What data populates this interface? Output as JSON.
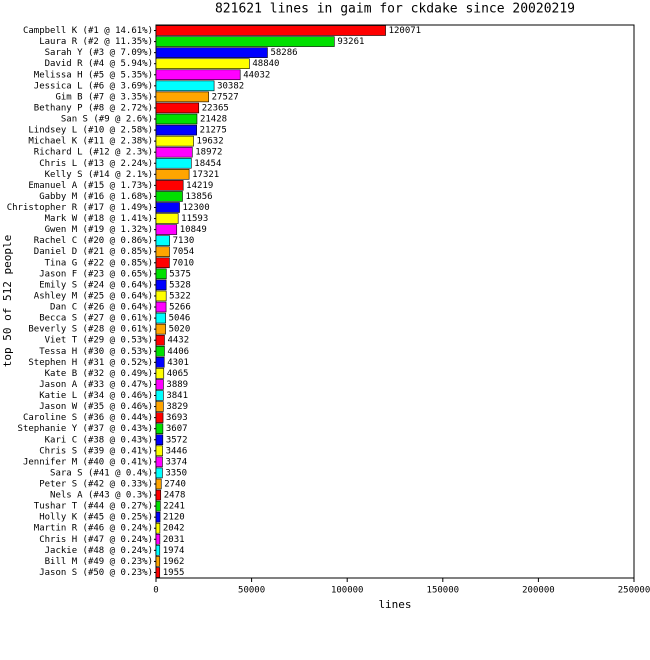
{
  "chart_data": {
    "type": "bar",
    "orientation": "horizontal",
    "title": "821621 lines in gaim for ckdake since 20020219",
    "x_label": "lines",
    "y_label": "top 50 of 512 people",
    "palette": [
      "#ff0000",
      "#00e000",
      "#0000ff",
      "#ffff00",
      "#ff00ff",
      "#00ffff",
      "#ffa500"
    ],
    "categories": [
      "Campbell K (#1 @ 14.61%)",
      "Laura R (#2 @ 11.35%)",
      "Sarah Y (#3 @ 7.09%)",
      "David R (#4 @ 5.94%)",
      "Melissa H (#5 @ 5.35%)",
      "Jessica L (#6 @ 3.69%)",
      "Gim B (#7 @ 3.35%)",
      "Bethany P (#8 @ 2.72%)",
      "San S (#9 @ 2.6%)",
      "Lindsey L (#10 @ 2.58%)",
      "Michael K (#11 @ 2.38%)",
      "Richard L (#12 @ 2.3%)",
      "Chris L (#13 @ 2.24%)",
      "Kelly S (#14 @ 2.1%)",
      "Emanuel A (#15 @ 1.73%)",
      "Gabby M (#16 @ 1.68%)",
      "Christopher R (#17 @ 1.49%)",
      "Mark W (#18 @ 1.41%)",
      "Gwen M (#19 @ 1.32%)",
      "Rachel C (#20 @ 0.86%)",
      "Daniel D (#21 @ 0.85%)",
      "Tina G (#22 @ 0.85%)",
      "Jason F (#23 @ 0.65%)",
      "Emily S (#24 @ 0.64%)",
      "Ashley M (#25 @ 0.64%)",
      "Dan C (#26 @ 0.64%)",
      "Becca S (#27 @ 0.61%)",
      "Beverly S (#28 @ 0.61%)",
      "Viet T (#29 @ 0.53%)",
      "Tessa H (#30 @ 0.53%)",
      "Stephen H (#31 @ 0.52%)",
      "Kate B (#32 @ 0.49%)",
      "Jason A (#33 @ 0.47%)",
      "Katie L (#34 @ 0.46%)",
      "Jason W (#35 @ 0.46%)",
      "Caroline S (#36 @ 0.44%)",
      "Stephanie Y (#37 @ 0.43%)",
      "Kari C (#38 @ 0.43%)",
      "Chris S (#39 @ 0.41%)",
      "Jennifer M (#40 @ 0.41%)",
      "Sara S (#41 @ 0.4%)",
      "Peter S (#42 @ 0.33%)",
      "Nels A (#43 @ 0.3%)",
      "Tushar T (#44 @ 0.27%)",
      "Holly K (#45 @ 0.25%)",
      "Martin R (#46 @ 0.24%)",
      "Chris H (#47 @ 0.24%)",
      "Jackie (#48 @ 0.24%)",
      "Bill M (#49 @ 0.23%)",
      "Jason S (#50 @ 0.23%)"
    ],
    "values": [
      120071,
      93261,
      58286,
      48840,
      44032,
      30382,
      27527,
      22365,
      21428,
      21275,
      19632,
      18972,
      18454,
      17321,
      14219,
      13856,
      12300,
      11593,
      10849,
      7130,
      7054,
      7010,
      5375,
      5328,
      5322,
      5266,
      5046,
      5020,
      4432,
      4406,
      4301,
      4065,
      3889,
      3841,
      3829,
      3693,
      3607,
      3572,
      3446,
      3374,
      3350,
      2740,
      2478,
      2241,
      2120,
      2042,
      2031,
      1974,
      1962,
      1955
    ],
    "xlim": [
      0,
      250000
    ],
    "xticks": [
      0,
      50000,
      100000,
      150000,
      200000,
      250000
    ],
    "grid": false
  }
}
